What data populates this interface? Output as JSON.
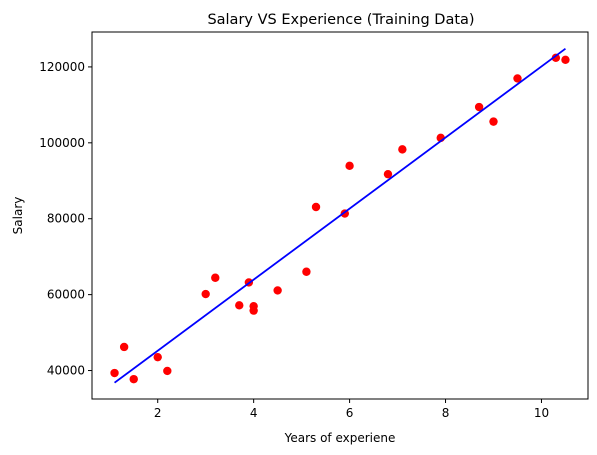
{
  "chart_data": {
    "type": "scatter",
    "title": "Salary VS Experience (Training Data)",
    "xlabel": "Years of experiene",
    "ylabel": "Salary",
    "xlim": [
      0.63,
      10.97
    ],
    "ylim": [
      32500,
      129200
    ],
    "xticks": [
      2,
      4,
      6,
      8,
      10
    ],
    "yticks": [
      40000,
      60000,
      80000,
      100000,
      120000
    ],
    "grid": false,
    "series": [
      {
        "kind": "scatter",
        "color": "#ff0000",
        "points": [
          [
            1.1,
            39343
          ],
          [
            1.3,
            46205
          ],
          [
            1.5,
            37731
          ],
          [
            2.0,
            43525
          ],
          [
            2.2,
            39891
          ],
          [
            3.0,
            60150
          ],
          [
            3.2,
            64445
          ],
          [
            3.7,
            57189
          ],
          [
            3.9,
            63218
          ],
          [
            4.0,
            55794
          ],
          [
            4.0,
            56957
          ],
          [
            4.5,
            61111
          ],
          [
            5.1,
            66029
          ],
          [
            5.3,
            83088
          ],
          [
            5.9,
            81363
          ],
          [
            6.0,
            93940
          ],
          [
            6.8,
            91738
          ],
          [
            7.1,
            98273
          ],
          [
            7.9,
            101302
          ],
          [
            8.7,
            109431
          ],
          [
            9.0,
            105582
          ],
          [
            9.5,
            116969
          ],
          [
            10.3,
            122391
          ],
          [
            10.5,
            121872
          ]
        ]
      },
      {
        "kind": "line",
        "color": "#0000ff",
        "points": [
          [
            1.1,
            36800
          ],
          [
            10.5,
            124800
          ]
        ]
      }
    ]
  }
}
